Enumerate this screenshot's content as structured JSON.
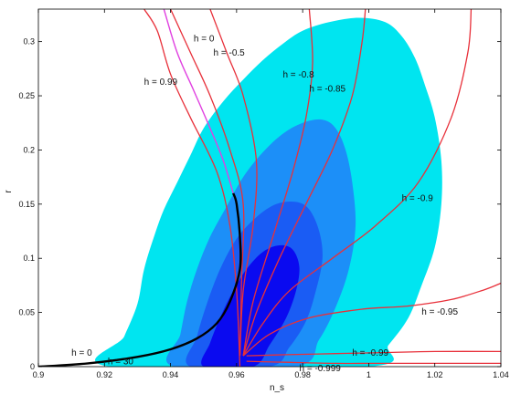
{
  "chart_data": {
    "type": "scatter",
    "title": "",
    "xlabel": "n_s",
    "ylabel": "r",
    "xlim": [
      0.9,
      1.04
    ],
    "ylim": [
      0,
      0.33
    ],
    "x_ticks": [
      "0.9",
      "0.92",
      "0.94",
      "0.96",
      "0.98",
      "1",
      "1.02",
      "1.04"
    ],
    "y_ticks": [
      "0",
      "0.05",
      "0.1",
      "0.15",
      "0.2",
      "0.25",
      "0.3"
    ],
    "colors": {
      "region_95": "#00e5f0",
      "region_90": "#1c8ff8",
      "region_68": "#1a5cf4",
      "region_core": "#0a0af0",
      "red_curve": "#e8303a",
      "black_curve": "#000000",
      "magenta_curve": "#e040e0"
    },
    "regions": [
      {
        "name": "outer",
        "color": "#00e5f0",
        "points": [
          [
            0.922,
            0.0
          ],
          [
            0.926,
            0.028
          ],
          [
            0.93,
            0.058
          ],
          [
            0.932,
            0.09
          ],
          [
            0.935,
            0.12
          ],
          [
            0.938,
            0.145
          ],
          [
            0.942,
            0.17
          ],
          [
            0.946,
            0.195
          ],
          [
            0.95,
            0.22
          ],
          [
            0.956,
            0.245
          ],
          [
            0.962,
            0.265
          ],
          [
            0.968,
            0.283
          ],
          [
            0.974,
            0.298
          ],
          [
            0.98,
            0.31
          ],
          [
            0.988,
            0.318
          ],
          [
            0.997,
            0.322
          ],
          [
            1.005,
            0.318
          ],
          [
            1.01,
            0.305
          ],
          [
            1.014,
            0.285
          ],
          [
            1.017,
            0.26
          ],
          [
            1.02,
            0.23
          ],
          [
            1.022,
            0.19
          ],
          [
            1.022,
            0.15
          ],
          [
            1.02,
            0.11
          ],
          [
            1.016,
            0.075
          ],
          [
            1.012,
            0.045
          ],
          [
            1.006,
            0.02
          ],
          [
            1.0,
            0.0
          ]
        ]
      },
      {
        "name": "mid",
        "color": "#1c8ff8",
        "points": [
          [
            0.941,
            0.0
          ],
          [
            0.943,
            0.03
          ],
          [
            0.945,
            0.06
          ],
          [
            0.948,
            0.09
          ],
          [
            0.952,
            0.12
          ],
          [
            0.957,
            0.148
          ],
          [
            0.962,
            0.175
          ],
          [
            0.968,
            0.198
          ],
          [
            0.974,
            0.215
          ],
          [
            0.98,
            0.225
          ],
          [
            0.986,
            0.228
          ],
          [
            0.99,
            0.22
          ],
          [
            0.993,
            0.2
          ],
          [
            0.995,
            0.17
          ],
          [
            0.996,
            0.13
          ],
          [
            0.994,
            0.09
          ],
          [
            0.99,
            0.055
          ],
          [
            0.985,
            0.025
          ],
          [
            0.978,
            0.0
          ]
        ]
      },
      {
        "name": "inner",
        "color": "#1a5cf4",
        "points": [
          [
            0.946,
            0.0
          ],
          [
            0.948,
            0.028
          ],
          [
            0.951,
            0.058
          ],
          [
            0.955,
            0.09
          ],
          [
            0.96,
            0.118
          ],
          [
            0.966,
            0.138
          ],
          [
            0.972,
            0.15
          ],
          [
            0.978,
            0.152
          ],
          [
            0.982,
            0.145
          ],
          [
            0.985,
            0.125
          ],
          [
            0.986,
            0.1
          ],
          [
            0.984,
            0.07
          ],
          [
            0.981,
            0.042
          ],
          [
            0.976,
            0.018
          ],
          [
            0.97,
            0.0
          ]
        ]
      },
      {
        "name": "core",
        "color": "#0a0af0",
        "points": [
          [
            0.95,
            0.0
          ],
          [
            0.952,
            0.022
          ],
          [
            0.955,
            0.045
          ],
          [
            0.959,
            0.07
          ],
          [
            0.963,
            0.09
          ],
          [
            0.968,
            0.106
          ],
          [
            0.973,
            0.112
          ],
          [
            0.977,
            0.108
          ],
          [
            0.979,
            0.092
          ],
          [
            0.978,
            0.07
          ],
          [
            0.975,
            0.045
          ],
          [
            0.97,
            0.02
          ],
          [
            0.965,
            0.0
          ]
        ]
      }
    ],
    "red_curves": [
      {
        "label": "h = 0",
        "points": [
          [
            0.961,
            0.01
          ],
          [
            0.9615,
            0.08
          ],
          [
            0.962,
            0.15
          ],
          [
            0.958,
            0.2
          ],
          [
            0.952,
            0.25
          ],
          [
            0.946,
            0.29
          ],
          [
            0.94,
            0.33
          ]
        ],
        "label_at": [
          0.947,
          0.3
        ]
      },
      {
        "label": "h = -0.5",
        "points": [
          [
            0.961,
            0.01
          ],
          [
            0.962,
            0.07
          ],
          [
            0.965,
            0.13
          ],
          [
            0.966,
            0.19
          ],
          [
            0.962,
            0.25
          ],
          [
            0.957,
            0.29
          ],
          [
            0.952,
            0.33
          ]
        ],
        "label_at": [
          0.953,
          0.287
        ]
      },
      {
        "label": "h = 0.99",
        "points": [
          [
            0.961,
            0.0
          ],
          [
            0.96,
            0.07
          ],
          [
            0.958,
            0.13
          ],
          [
            0.954,
            0.18
          ],
          [
            0.946,
            0.23
          ],
          [
            0.94,
            0.27
          ],
          [
            0.936,
            0.31
          ],
          [
            0.932,
            0.33
          ]
        ],
        "label_at": [
          0.932,
          0.26
        ]
      },
      {
        "label": "h = -0.8",
        "points": [
          [
            0.962,
            0.01
          ],
          [
            0.965,
            0.06
          ],
          [
            0.971,
            0.12
          ],
          [
            0.977,
            0.18
          ],
          [
            0.981,
            0.23
          ],
          [
            0.983,
            0.28
          ],
          [
            0.982,
            0.33
          ]
        ],
        "label_at": [
          0.974,
          0.267
        ]
      },
      {
        "label": "h = -0.85",
        "points": [
          [
            0.962,
            0.01
          ],
          [
            0.966,
            0.05
          ],
          [
            0.973,
            0.1
          ],
          [
            0.981,
            0.15
          ],
          [
            0.989,
            0.2
          ],
          [
            0.995,
            0.25
          ],
          [
            0.998,
            0.3
          ],
          [
            0.999,
            0.33
          ]
        ],
        "label_at": [
          0.982,
          0.254
        ]
      },
      {
        "label": "h = -0.9",
        "points": [
          [
            0.962,
            0.01
          ],
          [
            0.968,
            0.04
          ],
          [
            0.976,
            0.07
          ],
          [
            0.989,
            0.1
          ],
          [
            1.002,
            0.13
          ],
          [
            1.015,
            0.17
          ],
          [
            1.025,
            0.23
          ],
          [
            1.03,
            0.29
          ],
          [
            1.031,
            0.33
          ]
        ],
        "label_at": [
          1.01,
          0.153
        ]
      },
      {
        "label": "h = -0.95",
        "points": [
          [
            0.962,
            0.01
          ],
          [
            0.97,
            0.03
          ],
          [
            0.982,
            0.045
          ],
          [
            0.998,
            0.053
          ],
          [
            1.012,
            0.056
          ],
          [
            1.025,
            0.062
          ],
          [
            1.035,
            0.071
          ],
          [
            1.04,
            0.077
          ]
        ],
        "label_at": [
          1.016,
          0.048
        ]
      },
      {
        "label": "h = -0.99",
        "points": [
          [
            0.963,
            0.01
          ],
          [
            0.975,
            0.011
          ],
          [
            0.99,
            0.012
          ],
          [
            1.005,
            0.013
          ],
          [
            1.02,
            0.014
          ],
          [
            1.04,
            0.014
          ]
        ],
        "label_at": [
          0.995,
          0.01
        ]
      },
      {
        "label": "h = -0.999",
        "points": [
          [
            0.963,
            0.005
          ],
          [
            0.975,
            0.004
          ],
          [
            0.99,
            0.003
          ],
          [
            1.005,
            0.003
          ],
          [
            1.04,
            0.003
          ]
        ],
        "label_at": [
          0.979,
          -0.004
        ]
      }
    ],
    "black_curve": {
      "points": [
        [
          0.9,
          0.0
        ],
        [
          0.915,
          0.003
        ],
        [
          0.93,
          0.009
        ],
        [
          0.94,
          0.016
        ],
        [
          0.948,
          0.026
        ],
        [
          0.954,
          0.04
        ],
        [
          0.958,
          0.06
        ],
        [
          0.961,
          0.09
        ],
        [
          0.961,
          0.12
        ],
        [
          0.96,
          0.15
        ],
        [
          0.959,
          0.16
        ]
      ]
    },
    "magenta_curve": {
      "points": [
        [
          0.959,
          0.16
        ],
        [
          0.956,
          0.19
        ],
        [
          0.952,
          0.22
        ],
        [
          0.947,
          0.255
        ],
        [
          0.942,
          0.29
        ],
        [
          0.938,
          0.33
        ]
      ]
    },
    "extra_labels": [
      {
        "text": "h = 0",
        "at": [
          0.91,
          0.01
        ]
      },
      {
        "text": "h = 30",
        "at": [
          0.921,
          0.002
        ]
      }
    ]
  }
}
